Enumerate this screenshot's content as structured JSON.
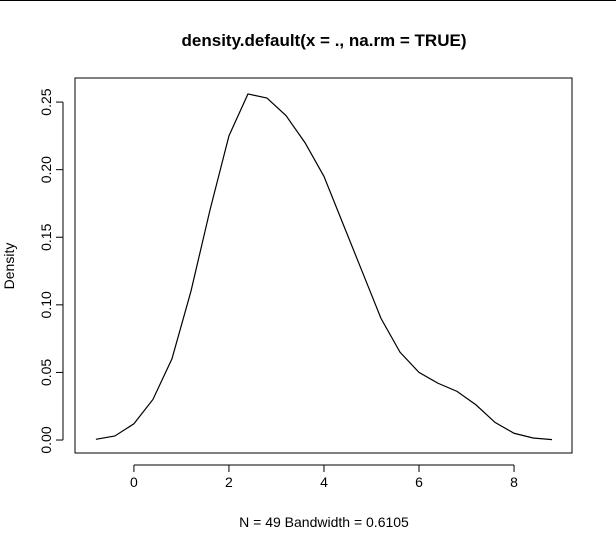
{
  "chart_data": {
    "type": "line",
    "title": "density.default(x = ., na.rm = TRUE)",
    "x_label": "N = 49   Bandwidth = 0.6105",
    "y_label": "Density",
    "color": "#000000",
    "x": [
      -0.8,
      -0.4,
      0,
      0.4,
      0.8,
      1.2,
      1.6,
      2.0,
      2.4,
      2.8,
      3.2,
      3.6,
      4.0,
      4.4,
      4.8,
      5.2,
      5.6,
      6.0,
      6.4,
      6.8,
      7.2,
      7.6,
      8.0,
      8.4,
      8.8
    ],
    "values": [
      0.0005,
      0.003,
      0.012,
      0.03,
      0.06,
      0.11,
      0.17,
      0.225,
      0.256,
      0.253,
      0.24,
      0.22,
      0.195,
      0.16,
      0.125,
      0.09,
      0.065,
      0.05,
      0.042,
      0.036,
      0.026,
      0.013,
      0.005,
      0.0015,
      0.0003
    ],
    "xlim": [
      -1.24,
      9.22
    ],
    "ylim": [
      -0.0096,
      0.2678
    ],
    "xticks": [
      0,
      2,
      4,
      6,
      8
    ],
    "yticks": [
      {
        "value": 0,
        "label": "0.00"
      },
      {
        "value": 0.05,
        "label": "0.05"
      },
      {
        "value": 0.1,
        "label": "0.10"
      },
      {
        "value": 0.15,
        "label": "0.15"
      },
      {
        "value": 0.2,
        "label": "0.20"
      },
      {
        "value": 0.25,
        "label": "0.25"
      }
    ]
  }
}
